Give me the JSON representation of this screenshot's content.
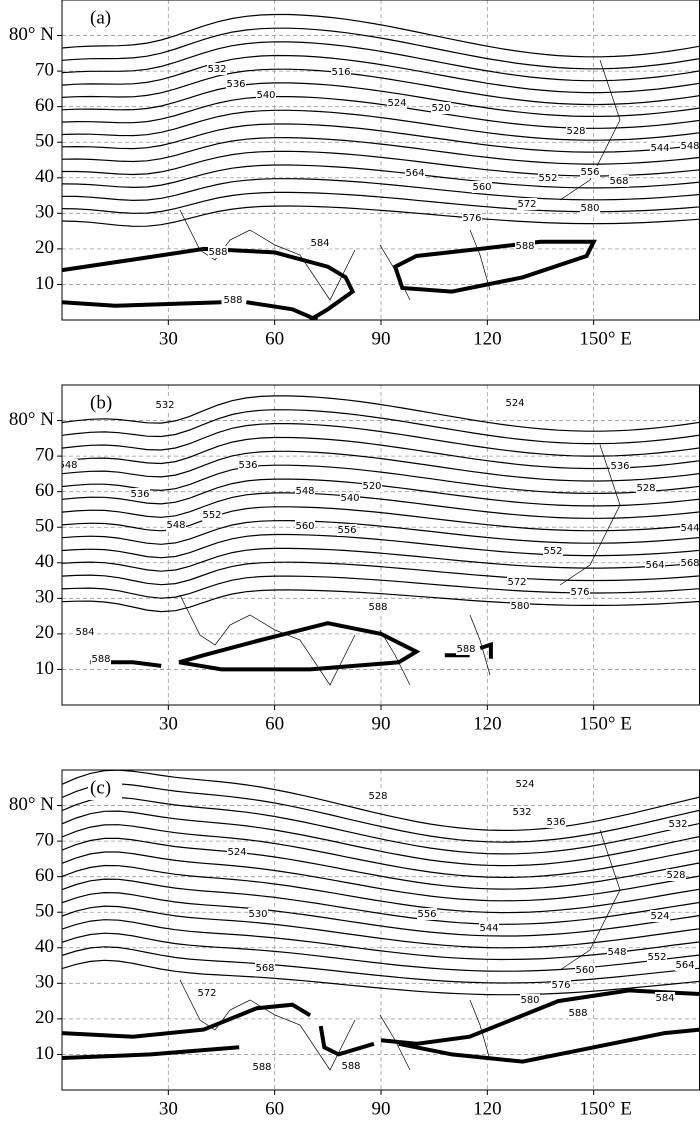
{
  "map": {
    "xlim": [
      0,
      180
    ],
    "ylim": [
      0,
      90
    ],
    "xticks": [
      {
        "value": 30,
        "label": "30"
      },
      {
        "value": 60,
        "label": "60"
      },
      {
        "value": 90,
        "label": "90"
      },
      {
        "value": 120,
        "label": "120"
      },
      {
        "value": 150,
        "label": "150° E"
      }
    ],
    "yticks": [
      {
        "value": 80,
        "label": "80° N"
      },
      70,
      60,
      50,
      40,
      30,
      20,
      10
    ],
    "panels": [
      {
        "label": "(a)",
        "contour_labels": [
          516,
          532,
          536,
          540,
          524,
          520,
          528,
          544,
          548,
          564,
          560,
          552,
          556,
          568,
          572,
          576,
          580,
          584,
          588,
          588,
          588
        ]
      },
      {
        "label": "(b)",
        "contour_labels": [
          532,
          524,
          548,
          536,
          536,
          548,
          552,
          520,
          548,
          540,
          560,
          556,
          536,
          528,
          544,
          552,
          564,
          568,
          572,
          576,
          580,
          584,
          588,
          588,
          588
        ]
      },
      {
        "label": "(c)",
        "contour_labels": [
          524,
          528,
          532,
          536,
          532,
          524,
          528,
          530,
          556,
          544,
          524,
          548,
          552,
          564,
          568,
          560,
          576,
          580,
          584,
          572,
          588,
          588,
          588
        ]
      }
    ]
  }
}
